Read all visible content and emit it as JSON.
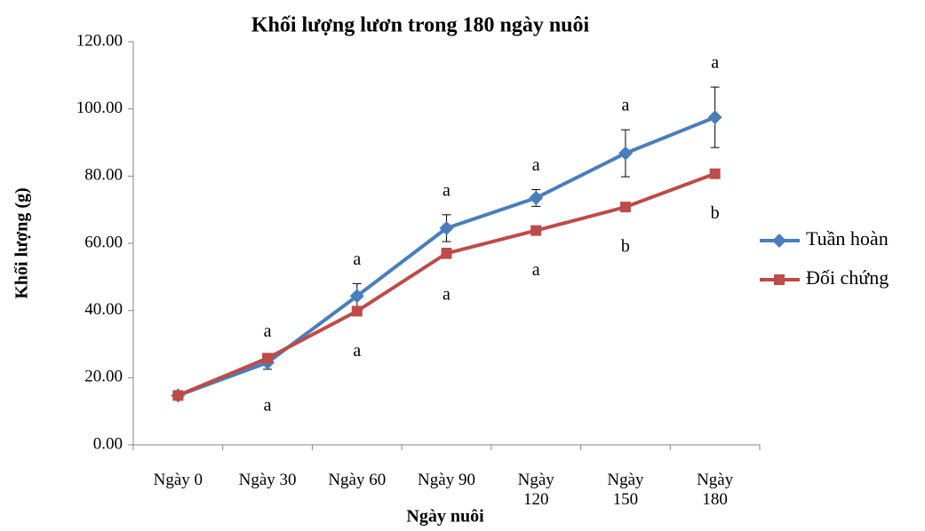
{
  "chart_data": {
    "type": "line",
    "title": "Khối lượng lươn trong 180 ngày nuôi",
    "x_label": "Ngày nuôi",
    "y_label": "Khối lượng (g)",
    "categories": [
      "Ngày 0",
      "Ngày 30",
      "Ngày 60",
      "Ngày 90",
      "Ngày 120",
      "Ngày 150",
      "Ngày 180"
    ],
    "ylim": [
      0,
      120
    ],
    "yticks": [
      {
        "value": 0,
        "label": "0.00"
      },
      {
        "value": 20,
        "label": "20.00"
      },
      {
        "value": 40,
        "label": "40.00"
      },
      {
        "value": 60,
        "label": "60.00"
      },
      {
        "value": 80,
        "label": "80.00"
      },
      {
        "value": 100,
        "label": "100.00"
      },
      {
        "value": 120,
        "label": "120.00"
      }
    ],
    "legend": "right",
    "series": [
      {
        "name": "Tuần hoàn",
        "color": "#4a7ebb",
        "marker": "diamond",
        "values": [
          14.7,
          24.5,
          44.3,
          64.5,
          73.5,
          86.8,
          97.5
        ],
        "errors": [
          0.8,
          2.0,
          3.7,
          4.0,
          2.5,
          7.0,
          9.0
        ],
        "annotations": [
          null,
          "a",
          "a",
          "a",
          "a",
          "a",
          "a"
        ]
      },
      {
        "name": "Đối chứng",
        "color": "#be4b48",
        "marker": "square",
        "values": [
          14.7,
          25.8,
          39.8,
          57.0,
          63.8,
          70.8,
          80.7
        ],
        "errors": [
          0.6,
          0.8,
          1.0,
          1.5,
          1.0,
          1.0,
          1.0
        ],
        "annotations": [
          null,
          "a",
          "a",
          "a",
          "a",
          "b",
          "b"
        ]
      }
    ]
  }
}
